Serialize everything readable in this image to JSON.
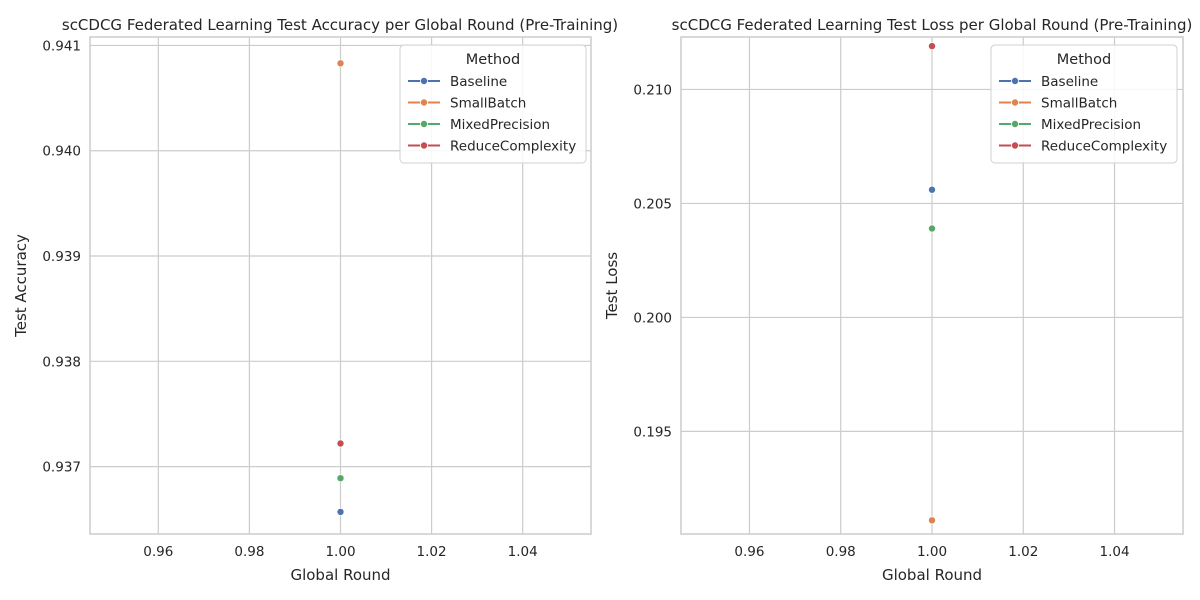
{
  "chart_data": [
    {
      "type": "scatter",
      "title": "scCDCG Federated Learning Test Accuracy per Global Round (Pre-Training)",
      "xlabel": "Global Round",
      "ylabel": "Test Accuracy",
      "xlim": [
        0.945,
        1.055
      ],
      "ylim": [
        0.93636,
        0.94108
      ],
      "xticks": [
        0.96,
        0.98,
        1.0,
        1.02,
        1.04
      ],
      "xtick_labels": [
        "0.96",
        "0.98",
        "1.00",
        "1.02",
        "1.04"
      ],
      "yticks": [
        0.937,
        0.938,
        0.939,
        0.94,
        0.941
      ],
      "ytick_labels": [
        "0.937",
        "0.938",
        "0.939",
        "0.940",
        "0.941"
      ],
      "grid": true,
      "legend": {
        "title": "Method",
        "position": "top-right"
      },
      "series": [
        {
          "name": "Baseline",
          "color": "#4c72b0",
          "x": [
            1.0
          ],
          "y": [
            0.93657
          ]
        },
        {
          "name": "SmallBatch",
          "color": "#dd8452",
          "x": [
            1.0
          ],
          "y": [
            0.94083
          ]
        },
        {
          "name": "MixedPrecision",
          "color": "#55a868",
          "x": [
            1.0
          ],
          "y": [
            0.93689
          ]
        },
        {
          "name": "ReduceComplexity",
          "color": "#c44e52",
          "x": [
            1.0
          ],
          "y": [
            0.93722
          ]
        }
      ]
    },
    {
      "type": "scatter",
      "title": "scCDCG Federated Learning Test Loss per Global Round (Pre-Training)",
      "xlabel": "Global Round",
      "ylabel": "Test Loss",
      "xlim": [
        0.945,
        1.055
      ],
      "ylim": [
        0.1905,
        0.2123
      ],
      "xticks": [
        0.96,
        0.98,
        1.0,
        1.02,
        1.04
      ],
      "xtick_labels": [
        "0.96",
        "0.98",
        "1.00",
        "1.02",
        "1.04"
      ],
      "yticks": [
        0.195,
        0.2,
        0.205,
        0.21
      ],
      "ytick_labels": [
        "0.195",
        "0.200",
        "0.205",
        "0.210"
      ],
      "grid": true,
      "legend": {
        "title": "Method",
        "position": "top-right"
      },
      "series": [
        {
          "name": "Baseline",
          "color": "#4c72b0",
          "x": [
            1.0
          ],
          "y": [
            0.2056
          ]
        },
        {
          "name": "SmallBatch",
          "color": "#dd8452",
          "x": [
            1.0
          ],
          "y": [
            0.1911
          ]
        },
        {
          "name": "MixedPrecision",
          "color": "#55a868",
          "x": [
            1.0
          ],
          "y": [
            0.2039
          ]
        },
        {
          "name": "ReduceComplexity",
          "color": "#c44e52",
          "x": [
            1.0
          ],
          "y": [
            0.2119
          ]
        }
      ]
    }
  ]
}
